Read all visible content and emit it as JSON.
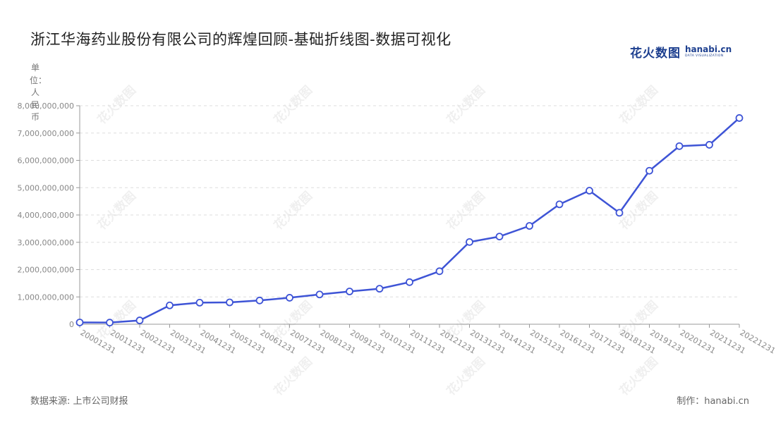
{
  "title": "浙江华海药业股份有限公司的辉煌回顾-基础折线图-数据可视化",
  "logo": {
    "cn": "花火数图",
    "en": "hanabi.cn",
    "tagline": "DATA VISUALIZATION"
  },
  "unit_label": "单位：人民币",
  "source": "数据来源: 上市公司财报",
  "credit": "制作：hanabi.cn",
  "watermark": "花火数图",
  "colors": {
    "line": "#3e54d6",
    "grid": "#dddddd",
    "axis": "#999999",
    "tick_text": "#888888"
  },
  "chart_data": {
    "type": "line",
    "categories": [
      "20001231",
      "20011231",
      "20021231",
      "20031231",
      "20041231",
      "20051231",
      "20061231",
      "20071231",
      "20081231",
      "20091231",
      "20101231",
      "20111231",
      "20121231",
      "20131231",
      "20141231",
      "20151231",
      "20161231",
      "20171231",
      "20181231",
      "20191231",
      "20201231",
      "20211231",
      "20221231"
    ],
    "series": [
      {
        "values": [
          65000000,
          60000000,
          140000000,
          690000000,
          790000000,
          800000000,
          870000000,
          970000000,
          1090000000,
          1200000000,
          1300000000,
          1540000000,
          1940000000,
          3010000000,
          3210000000,
          3600000000,
          4390000000,
          4890000000,
          4080000000,
          5620000000,
          6520000000,
          6570000000,
          7550000000
        ]
      }
    ],
    "ylim": [
      0,
      8000000000
    ],
    "yticks": [
      0,
      1000000000,
      2000000000,
      3000000000,
      4000000000,
      5000000000,
      6000000000,
      7000000000,
      8000000000
    ],
    "ytick_labels": [
      "0",
      "1,000,000,000",
      "2,000,000,000",
      "3,000,000,000",
      "4,000,000,000",
      "5,000,000,000",
      "6,000,000,000",
      "7,000,000,000",
      "8,000,000,000"
    ],
    "grid": true
  }
}
